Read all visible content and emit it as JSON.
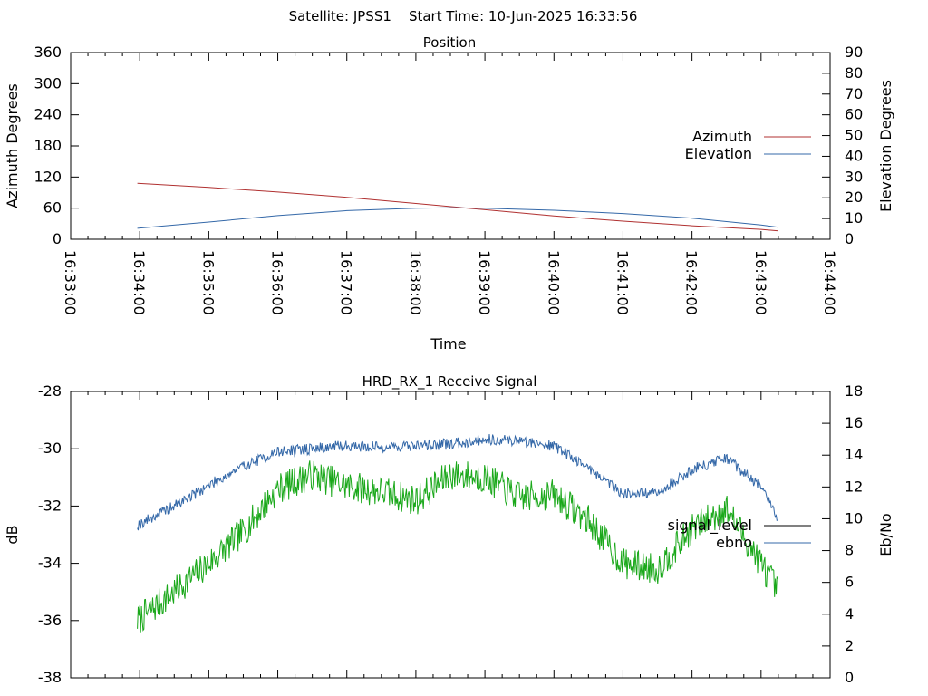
{
  "header": {
    "title": "Satellite: JPSS1    Start Time: 10-Jun-2025 16:33:56"
  },
  "chart_data": [
    {
      "type": "line",
      "title": "Position",
      "xlabel": "Time",
      "ylabel": "Azimuth Degrees",
      "y2label": "Elevation Degrees",
      "x_ticks": [
        "16:33:00",
        "16:34:00",
        "16:35:00",
        "16:36:00",
        "16:37:00",
        "16:38:00",
        "16:39:00",
        "16:40:00",
        "16:41:00",
        "16:42:00",
        "16:43:00",
        "16:44:00"
      ],
      "xlim": [
        "16:33:00",
        "16:44:00"
      ],
      "ylim": [
        0,
        360
      ],
      "y_ticks": [
        0,
        60,
        120,
        180,
        240,
        300,
        360
      ],
      "y2lim": [
        0,
        90
      ],
      "y2_ticks": [
        0,
        10,
        20,
        30,
        40,
        50,
        60,
        70,
        80,
        90
      ],
      "legend_position": "right",
      "grid": false,
      "series": [
        {
          "name": "Azimuth",
          "axis": "y",
          "color": "#b03030",
          "x": [
            "16:33:58",
            "16:35:00",
            "16:36:00",
            "16:37:00",
            "16:38:00",
            "16:39:00",
            "16:40:00",
            "16:41:00",
            "16:42:00",
            "16:43:00",
            "16:43:15"
          ],
          "values": [
            108,
            100,
            91,
            81,
            69,
            57,
            45,
            35,
            26,
            19,
            16
          ]
        },
        {
          "name": "Elevation",
          "axis": "y2",
          "color": "#3468a8",
          "x": [
            "16:33:58",
            "16:35:00",
            "16:36:00",
            "16:37:00",
            "16:38:00",
            "16:38:30",
            "16:39:00",
            "16:40:00",
            "16:41:00",
            "16:42:00",
            "16:43:00",
            "16:43:15"
          ],
          "values": [
            5.3,
            8.3,
            11.4,
            13.8,
            15.0,
            15.2,
            15.0,
            14.0,
            12.4,
            10.2,
            6.9,
            5.8
          ]
        }
      ]
    },
    {
      "type": "line",
      "title": "HRD_RX_1 Receive Signal",
      "xlabel": "",
      "ylabel": "dB",
      "y2label": "Eb/No",
      "xlim": [
        "16:33:00",
        "16:44:00"
      ],
      "ylim": [
        -38,
        -28
      ],
      "y_ticks": [
        -38,
        -36,
        -34,
        -32,
        -30,
        -28
      ],
      "y2lim": [
        0,
        18
      ],
      "y2_ticks": [
        0,
        2,
        4,
        6,
        8,
        10,
        12,
        14,
        16,
        18
      ],
      "legend_position": "right",
      "grid": false,
      "series": [
        {
          "name": "signal_level",
          "axis": "y",
          "color": "#000000",
          "x": [],
          "values": []
        },
        {
          "name": "ebno",
          "axis": "y2",
          "color": "#3468a8",
          "x": [
            "16:33:58",
            "16:34:30",
            "16:35:00",
            "16:35:30",
            "16:36:00",
            "16:36:30",
            "16:37:00",
            "16:37:30",
            "16:38:00",
            "16:38:30",
            "16:39:00",
            "16:39:30",
            "16:40:00",
            "16:40:30",
            "16:41:00",
            "16:41:30",
            "16:42:00",
            "16:42:30",
            "16:43:00",
            "16:43:15"
          ],
          "values": [
            9.6,
            10.8,
            12.1,
            13.3,
            14.2,
            14.4,
            14.6,
            14.5,
            14.6,
            14.7,
            15.0,
            14.9,
            14.6,
            13.2,
            11.6,
            11.6,
            13.1,
            13.8,
            12.0,
            10.0
          ]
        },
        {
          "name": "",
          "axis": "y",
          "color": "#1aa81a",
          "x": [
            "16:33:58",
            "16:34:30",
            "16:35:00",
            "16:35:30",
            "16:36:00",
            "16:36:30",
            "16:37:00",
            "16:37:30",
            "16:38:00",
            "16:38:30",
            "16:39:00",
            "16:39:30",
            "16:40:00",
            "16:40:30",
            "16:41:00",
            "16:41:30",
            "16:42:00",
            "16:42:30",
            "16:43:00",
            "16:43:15"
          ],
          "values": [
            -36.0,
            -35.0,
            -34.0,
            -32.9,
            -31.4,
            -30.9,
            -31.3,
            -31.5,
            -31.8,
            -30.9,
            -31.0,
            -31.7,
            -31.6,
            -32.5,
            -34.0,
            -34.2,
            -32.8,
            -32.1,
            -34.0,
            -35.0
          ]
        }
      ]
    }
  ]
}
